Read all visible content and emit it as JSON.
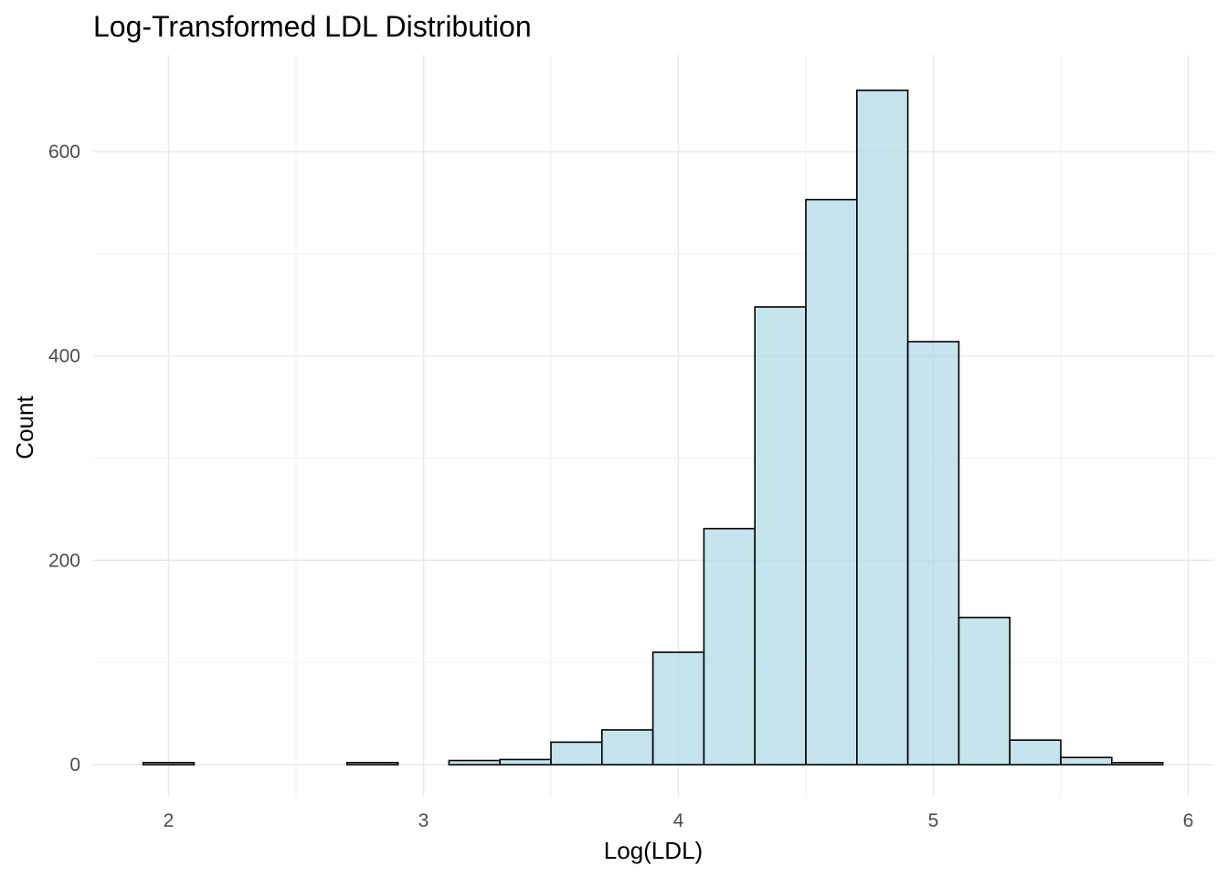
{
  "chart_data": {
    "type": "bar",
    "subtype": "histogram",
    "title": "Log-Transformed LDL Distribution",
    "xlabel": "Log(LDL)",
    "ylabel": "Count",
    "xlim": [
      1.9,
      5.9
    ],
    "ylim": [
      0,
      660
    ],
    "x_ticks": [
      "2",
      "3",
      "4",
      "5",
      "6"
    ],
    "y_ticks": [
      "0",
      "200",
      "400",
      "600"
    ],
    "grid": true,
    "bin_width": 0.2,
    "bins": [
      {
        "start": 1.9,
        "end": 2.1,
        "count": 2
      },
      {
        "start": 2.1,
        "end": 2.3,
        "count": 0
      },
      {
        "start": 2.3,
        "end": 2.5,
        "count": 0
      },
      {
        "start": 2.5,
        "end": 2.7,
        "count": 0
      },
      {
        "start": 2.7,
        "end": 2.9,
        "count": 2
      },
      {
        "start": 2.9,
        "end": 3.1,
        "count": 0
      },
      {
        "start": 3.1,
        "end": 3.3,
        "count": 4
      },
      {
        "start": 3.3,
        "end": 3.5,
        "count": 5
      },
      {
        "start": 3.5,
        "end": 3.7,
        "count": 22
      },
      {
        "start": 3.7,
        "end": 3.9,
        "count": 34
      },
      {
        "start": 3.9,
        "end": 4.1,
        "count": 110
      },
      {
        "start": 4.1,
        "end": 4.3,
        "count": 231
      },
      {
        "start": 4.3,
        "end": 4.5,
        "count": 448
      },
      {
        "start": 4.5,
        "end": 4.7,
        "count": 553
      },
      {
        "start": 4.7,
        "end": 4.9,
        "count": 660
      },
      {
        "start": 4.9,
        "end": 5.1,
        "count": 414
      },
      {
        "start": 5.1,
        "end": 5.3,
        "count": 144
      },
      {
        "start": 5.3,
        "end": 5.5,
        "count": 24
      },
      {
        "start": 5.5,
        "end": 5.7,
        "count": 7
      },
      {
        "start": 5.7,
        "end": 5.9,
        "count": 2
      }
    ],
    "colors": {
      "fill": "#add8e6",
      "fill_opacity": 0.7,
      "outline": "#000000"
    }
  }
}
